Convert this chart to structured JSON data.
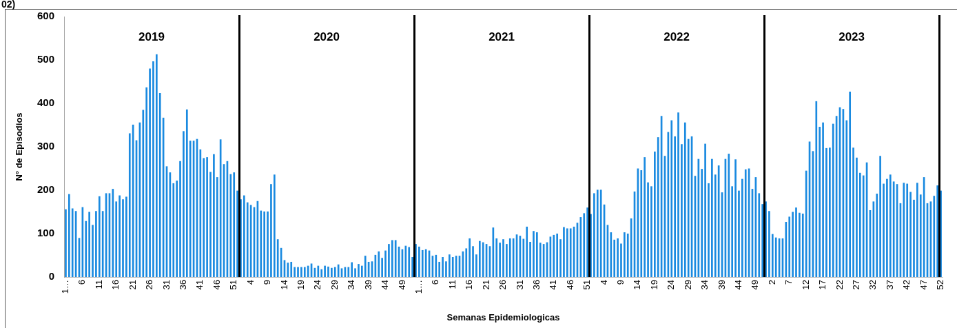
{
  "chart_data": {
    "type": "bar",
    "xlabel": "Semanas Epidemiologicas",
    "ylabel": "N° de Episodios",
    "annotations": [
      "02)",
      "2019",
      "2020",
      "2021",
      "2022",
      "2023"
    ],
    "categories": [
      "1…",
      null,
      null,
      null,
      null,
      "6",
      null,
      null,
      null,
      null,
      "11",
      null,
      null,
      null,
      null,
      "16",
      null,
      null,
      null,
      null,
      "21",
      null,
      null,
      null,
      null,
      "26",
      null,
      null,
      null,
      null,
      "31",
      null,
      null,
      null,
      null,
      "36",
      null,
      null,
      null,
      null,
      "41",
      null,
      null,
      null,
      null,
      "46",
      null,
      null,
      null,
      null,
      "51",
      null,
      null,
      null,
      null,
      "4",
      null,
      null,
      null,
      null,
      "9",
      null,
      null,
      null,
      null,
      "14",
      null,
      null,
      null,
      null,
      "19",
      null,
      null,
      null,
      null,
      "24",
      null,
      null,
      null,
      null,
      "29",
      null,
      null,
      null,
      null,
      "34",
      null,
      null,
      null,
      null,
      "39",
      null,
      null,
      null,
      null,
      "44",
      null,
      null,
      null,
      null,
      "49",
      null,
      null,
      null,
      null,
      "1…",
      null,
      null,
      null,
      null,
      "6",
      null,
      null,
      null,
      null,
      "11",
      null,
      null,
      null,
      null,
      "16",
      null,
      null,
      null,
      null,
      "21",
      null,
      null,
      null,
      null,
      "26",
      null,
      null,
      null,
      null,
      "31",
      null,
      null,
      null,
      null,
      "36",
      null,
      null,
      null,
      null,
      "41",
      null,
      null,
      null,
      null,
      "46",
      null,
      null,
      null,
      null,
      "51",
      null,
      null,
      null,
      null,
      "4",
      null,
      null,
      null,
      null,
      "9",
      null,
      null,
      null,
      null,
      "14",
      null,
      null,
      null,
      null,
      "19",
      null,
      null,
      null,
      null,
      "24",
      null,
      null,
      null,
      null,
      "29",
      null,
      null,
      null,
      null,
      "34",
      null,
      null,
      null,
      null,
      "39",
      null,
      null,
      null,
      null,
      "44",
      null,
      null,
      null,
      null,
      "49",
      null,
      null,
      null,
      null,
      "2",
      null,
      null,
      null,
      null,
      "7",
      null,
      null,
      null,
      null,
      "12",
      null,
      null,
      null,
      null,
      "17",
      null,
      null,
      null,
      null,
      "22",
      null,
      null,
      null,
      null,
      "27",
      null,
      null,
      null,
      null,
      "32",
      null,
      null,
      null,
      null,
      "37",
      null,
      null,
      null,
      null,
      "42",
      null,
      null,
      null,
      null,
      "47",
      null,
      null,
      null,
      null,
      "52"
    ],
    "values": [
      156,
      191,
      158,
      152,
      90,
      161,
      129,
      150,
      120,
      152,
      186,
      152,
      193,
      193,
      203,
      174,
      188,
      179,
      185,
      331,
      351,
      315,
      356,
      385,
      437,
      480,
      497,
      513,
      424,
      367,
      255,
      241,
      216,
      222,
      267,
      336,
      386,
      314,
      314,
      318,
      294,
      274,
      276,
      242,
      283,
      230,
      317,
      260,
      267,
      237,
      241,
      199,
      179,
      188,
      172,
      166,
      161,
      175,
      153,
      151,
      151,
      214,
      236,
      87,
      67,
      39,
      33,
      35,
      23,
      23,
      23,
      23,
      26,
      31,
      21,
      26,
      18,
      26,
      24,
      21,
      23,
      29,
      20,
      23,
      23,
      34,
      20,
      30,
      26,
      49,
      35,
      36,
      51,
      59,
      44,
      61,
      76,
      85,
      85,
      70,
      64,
      72,
      69,
      46,
      76,
      70,
      62,
      64,
      61,
      49,
      51,
      35,
      46,
      36,
      52,
      46,
      49,
      49,
      59,
      66,
      89,
      71,
      52,
      83,
      80,
      76,
      71,
      114,
      89,
      79,
      87,
      76,
      89,
      89,
      98,
      95,
      88,
      116,
      81,
      106,
      103,
      79,
      76,
      80,
      93,
      97,
      100,
      87,
      115,
      112,
      112,
      116,
      125,
      138,
      147,
      160,
      145,
      193,
      201,
      201,
      167,
      120,
      103,
      86,
      89,
      77,
      103,
      100,
      135,
      197,
      250,
      246,
      276,
      218,
      209,
      289,
      322,
      371,
      279,
      334,
      361,
      324,
      379,
      306,
      356,
      318,
      324,
      233,
      272,
      249,
      307,
      216,
      272,
      236,
      257,
      195,
      272,
      284,
      209,
      271,
      199,
      226,
      248,
      250,
      203,
      230,
      193,
      168,
      174,
      152,
      99,
      91,
      89,
      89,
      127,
      139,
      150,
      160,
      148,
      146,
      245,
      312,
      290,
      405,
      346,
      356,
      297,
      298,
      353,
      371,
      391,
      387,
      361,
      427,
      298,
      275,
      240,
      234,
      264,
      154,
      174,
      192,
      279,
      215,
      226,
      236,
      220,
      214,
      170,
      217,
      215,
      196,
      178,
      217,
      190,
      230,
      170,
      174,
      187,
      211,
      199
    ],
    "color": "#1a8ae0",
    "ylim": [
      0,
      600
    ],
    "yticks": [
      0,
      100,
      200,
      300,
      400,
      500,
      600
    ]
  }
}
